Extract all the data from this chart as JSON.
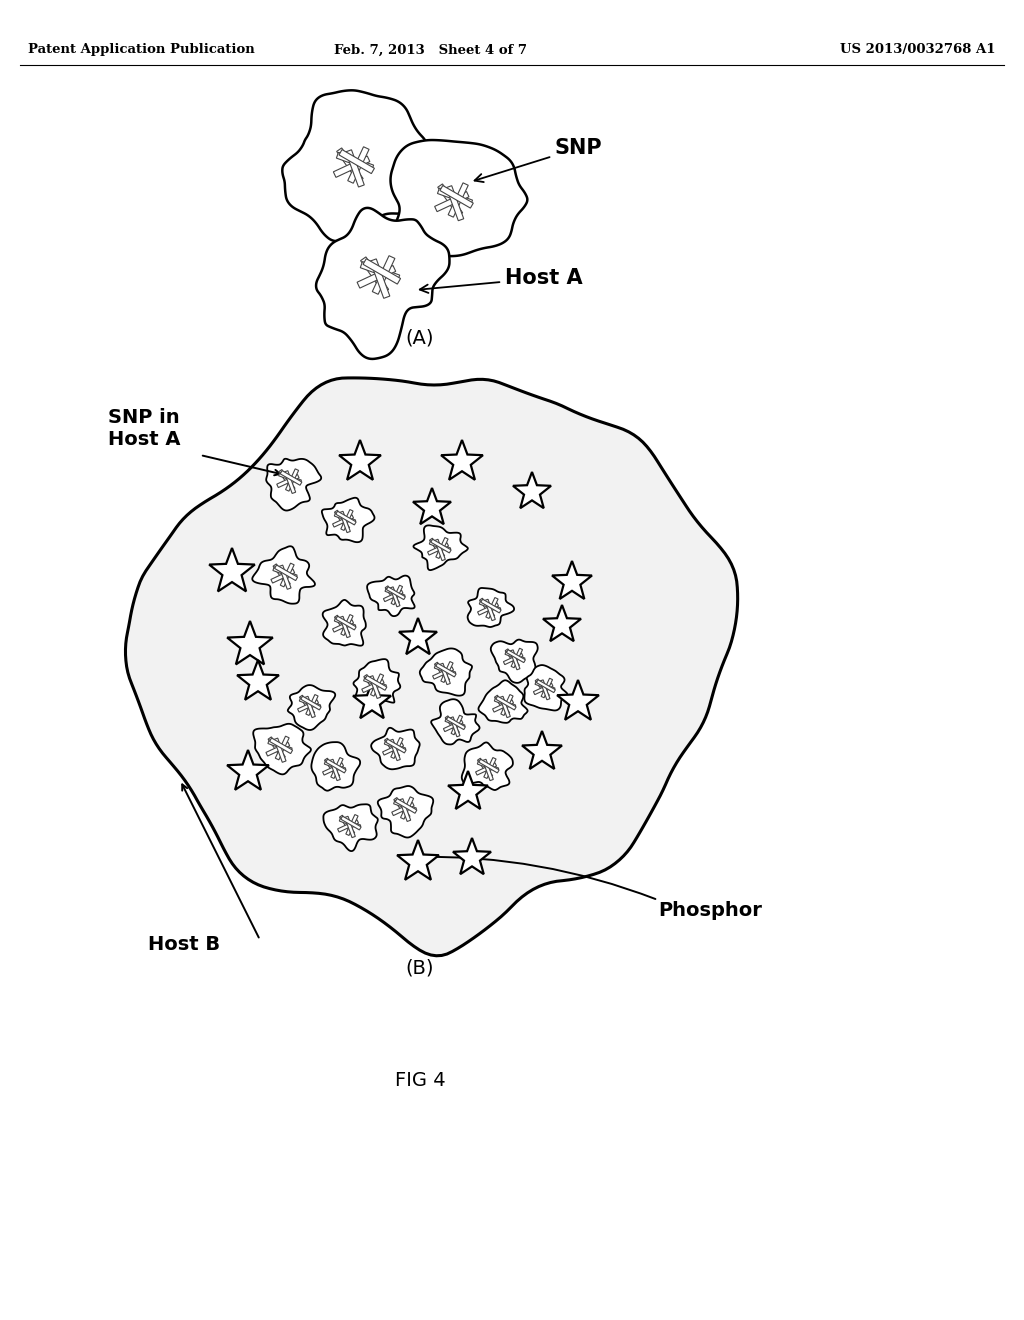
{
  "bg_color": "#ffffff",
  "header_left": "Patent Application Publication",
  "header_mid": "Feb. 7, 2013   Sheet 4 of 7",
  "header_right": "US 2013/0032768 A1",
  "fig_label_A": "(A)",
  "fig_label_B": "(B)",
  "fig_label_fig4": "FIG 4",
  "label_SNP": "SNP",
  "label_HostA": "Host A",
  "label_SNP_in_HostA": "SNP in\nHost A",
  "label_HostB": "Host B",
  "label_Phosphor": "Phosphor",
  "text_color": "#000000",
  "nanorod_color": "#555555",
  "nanorod_lw": 2.2,
  "blob_lw": 1.8,
  "star_lw": 1.8
}
